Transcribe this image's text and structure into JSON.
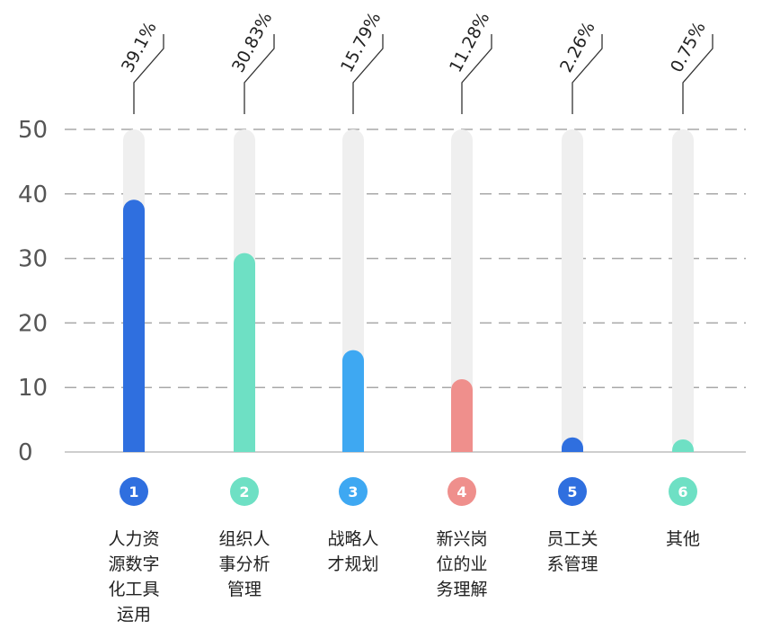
{
  "chart_data": {
    "type": "bar",
    "yticks": [
      0,
      10,
      20,
      30,
      40,
      50
    ],
    "ylim": [
      0,
      50
    ],
    "grid": true,
    "categories": [
      {
        "num": "1",
        "lines": [
          "人力资",
          "源数字",
          "化工具",
          "运用"
        ],
        "value": 39.1,
        "pct": "39.1%",
        "color": "#2f6fdf"
      },
      {
        "num": "2",
        "lines": [
          "组织人",
          "事分析",
          "管理"
        ],
        "value": 30.83,
        "pct": "30.83%",
        "color": "#6ee0c4"
      },
      {
        "num": "3",
        "lines": [
          "战略人",
          "才规划"
        ],
        "value": 15.79,
        "pct": "15.79%",
        "color": "#3ea8f2"
      },
      {
        "num": "4",
        "lines": [
          "新兴岗",
          "位的业",
          "务理解"
        ],
        "value": 11.28,
        "pct": "11.28%",
        "color": "#ef8f8c"
      },
      {
        "num": "5",
        "lines": [
          "员工关",
          "系管理"
        ],
        "value": 2.26,
        "pct": "2.26%",
        "color": "#2f6fdf"
      },
      {
        "num": "6",
        "lines": [
          "其他"
        ],
        "value": 0.75,
        "pct": "0.75%",
        "color": "#6ee0c4"
      }
    ],
    "track_color": "#efefef"
  }
}
